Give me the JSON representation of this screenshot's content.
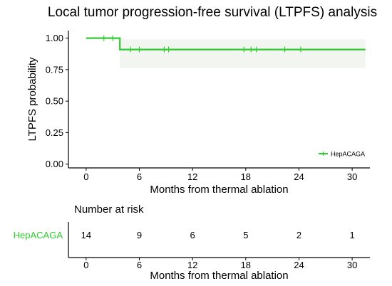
{
  "colors": {
    "curve": "#2ECC2E",
    "ci_band": "#F3F5F1",
    "axis": "#000000",
    "background": "#FFFFFF"
  },
  "chart_data": [
    {
      "type": "line",
      "subtype": "kaplan-meier",
      "title": "Local tumor progression-free survival (LTPFS) analysis",
      "xlabel": "Months from thermal ablation",
      "ylabel": "LTPFS probability",
      "xlim": [
        -2,
        32
      ],
      "ylim": [
        -0.03,
        1.06
      ],
      "x_ticks": [
        0,
        6,
        12,
        18,
        24,
        30
      ],
      "x_tick_labels": [
        "0",
        "6",
        "12",
        "18",
        "24",
        "30"
      ],
      "y_ticks": [
        0,
        0.25,
        0.5,
        0.75,
        1.0
      ],
      "y_tick_labels": [
        "0.00",
        "0.25",
        "0.50",
        "0.75",
        "1.00"
      ],
      "grid": false,
      "legend_position": "bottom-right",
      "series": [
        {
          "name": "HepACAGA",
          "color": "#2ECC2E",
          "steps": [
            {
              "x": 0,
              "y": 1.0
            },
            {
              "x": 3.8,
              "y": 1.0
            },
            {
              "x": 3.8,
              "y": 0.91
            },
            {
              "x": 31.5,
              "y": 0.91
            }
          ],
          "ci_band": {
            "x_start": 3.8,
            "x_end": 31.5,
            "lower": 0.76,
            "upper": 0.99
          },
          "censor_marks": [
            {
              "x": 2.0,
              "y": 1.0
            },
            {
              "x": 3.0,
              "y": 1.0
            },
            {
              "x": 5.0,
              "y": 0.91
            },
            {
              "x": 6.0,
              "y": 0.91
            },
            {
              "x": 8.8,
              "y": 0.91
            },
            {
              "x": 9.3,
              "y": 0.91
            },
            {
              "x": 17.8,
              "y": 0.91
            },
            {
              "x": 18.6,
              "y": 0.91
            },
            {
              "x": 19.2,
              "y": 0.91
            },
            {
              "x": 22.4,
              "y": 0.91
            },
            {
              "x": 24.2,
              "y": 0.91
            }
          ]
        }
      ]
    },
    {
      "type": "table",
      "title": "Number at risk",
      "xlabel": "Months from thermal ablation",
      "xlim": [
        -2,
        32
      ],
      "x_ticks": [
        0,
        6,
        12,
        18,
        24,
        30
      ],
      "x_tick_labels": [
        "0",
        "6",
        "12",
        "18",
        "24",
        "30"
      ],
      "rows": [
        {
          "strata": "HepACAGA",
          "color": "#2ECC2E",
          "times": [
            0,
            6,
            12,
            18,
            24,
            30
          ],
          "counts": [
            "14",
            "9",
            "6",
            "5",
            "2",
            "1"
          ]
        }
      ]
    }
  ]
}
